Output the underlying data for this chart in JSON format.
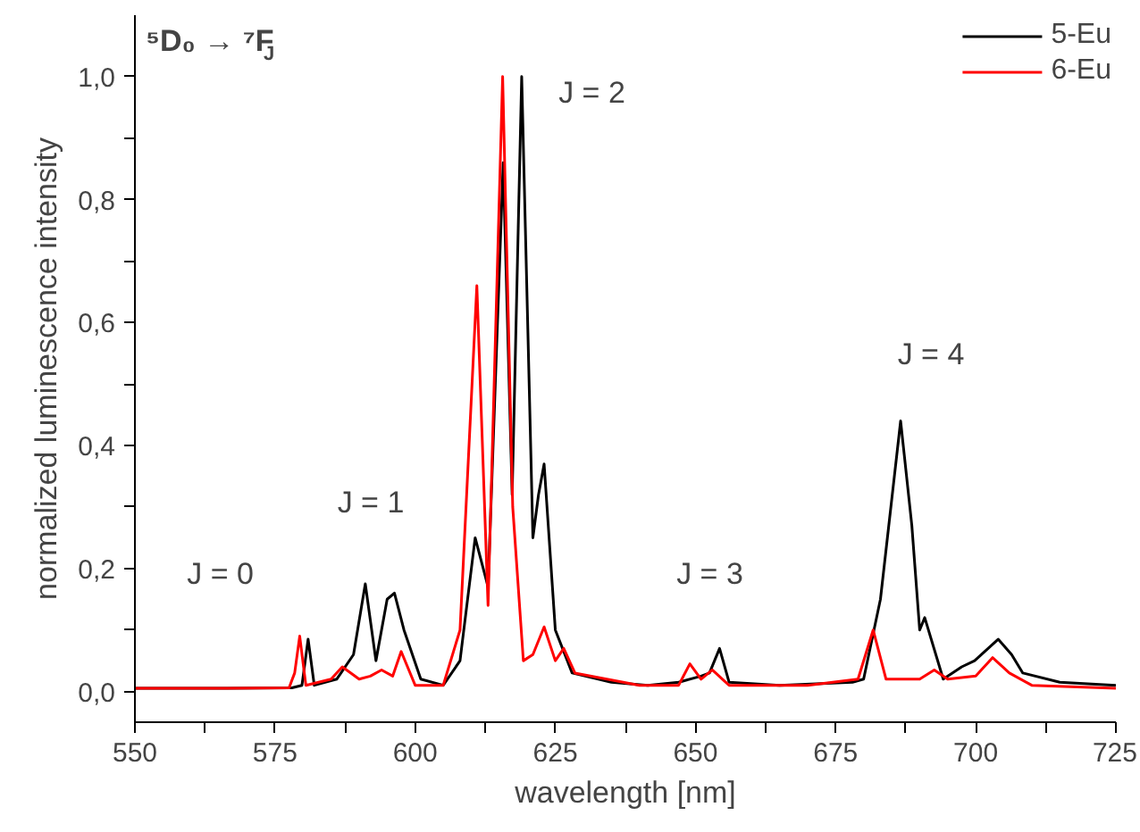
{
  "chart_data": {
    "type": "line",
    "title": "⁵D₀ → ⁷F$_{J}$",
    "xlabel": "wavelength [nm]",
    "ylabel": "normalized luminescence intensity",
    "xlim": [
      550,
      725
    ],
    "ylim": [
      -0.05,
      1.1
    ],
    "xticks": [
      550,
      {
        "value": 562.5,
        "label": null
      },
      575,
      {
        "value": 587.5,
        "label": null
      },
      600,
      {
        "value": 612.5,
        "label": null
      },
      625,
      {
        "value": 637.5,
        "label": null
      },
      650,
      {
        "value": 662.5,
        "label": null
      },
      675,
      {
        "value": 687.5,
        "label": null
      },
      700,
      {
        "value": 712.5,
        "label": null
      },
      725
    ],
    "yticks": [
      {
        "value": 0,
        "label": "0,0"
      },
      {
        "value": 0.1,
        "label": null
      },
      {
        "value": 0.2,
        "label": "0,2"
      },
      {
        "value": 0.3,
        "label": null
      },
      {
        "value": 0.4,
        "label": "0,4"
      },
      {
        "value": 0.5,
        "label": null
      },
      {
        "value": 0.6,
        "label": "0,6"
      },
      {
        "value": 0.7,
        "label": null
      },
      {
        "value": 0.8,
        "label": "0,8"
      },
      {
        "value": 0.9,
        "label": null
      },
      {
        "value": 1.0,
        "label": "1,0"
      }
    ],
    "grid": false,
    "legend": "top right",
    "line_style": "solid",
    "marker": "none",
    "series": [
      {
        "name": "5-Eu",
        "color": "#000000",
        "x": [
          550,
          565,
          578,
          579.8,
          580.9,
          582,
          586,
          589,
          591.1,
          593,
          595,
          596.3,
          598,
          601,
          605,
          608,
          610.7,
          613,
          615.7,
          617.3,
          619,
          621,
          622,
          623,
          625,
          628,
          635,
          641.5,
          647,
          651,
          652.5,
          654.3,
          656,
          665,
          678,
          680,
          683,
          686.6,
          688.6,
          690,
          690.9,
          694.2,
          697.5,
          699.8,
          704,
          706.4,
          708.4,
          715,
          725
        ],
        "values": [
          0.005,
          0.005,
          0.006,
          0.01,
          0.085,
          0.01,
          0.02,
          0.06,
          0.175,
          0.05,
          0.15,
          0.16,
          0.1,
          0.02,
          0.01,
          0.05,
          0.25,
          0.17,
          0.86,
          0.32,
          1.0,
          0.25,
          0.32,
          0.37,
          0.1,
          0.03,
          0.015,
          0.01,
          0.015,
          0.025,
          0.03,
          0.07,
          0.015,
          0.01,
          0.015,
          0.02,
          0.15,
          0.44,
          0.27,
          0.1,
          0.12,
          0.02,
          0.04,
          0.05,
          0.085,
          0.06,
          0.03,
          0.015,
          0.01
        ]
      },
      {
        "name": "6-Eu",
        "color": "#ff0000",
        "x": [
          550,
          565,
          577.5,
          578.5,
          579.4,
          580.5,
          585,
          587,
          590,
          592,
          594,
          596,
          597.5,
          600,
          605,
          608,
          611,
          613,
          615.6,
          617.4,
          619.3,
          621,
          623,
          625,
          626.5,
          628.5,
          640,
          647,
          649,
          651,
          653,
          656,
          670,
          679,
          681.7,
          684,
          690,
          692.6,
          695,
          700,
          703,
          706,
          710,
          725
        ],
        "values": [
          0.005,
          0.005,
          0.006,
          0.03,
          0.09,
          0.01,
          0.02,
          0.04,
          0.02,
          0.025,
          0.035,
          0.025,
          0.065,
          0.01,
          0.01,
          0.1,
          0.66,
          0.14,
          1.0,
          0.3,
          0.05,
          0.06,
          0.105,
          0.05,
          0.07,
          0.03,
          0.01,
          0.01,
          0.045,
          0.02,
          0.035,
          0.01,
          0.01,
          0.02,
          0.1,
          0.02,
          0.02,
          0.035,
          0.02,
          0.025,
          0.055,
          0.03,
          0.01,
          0.005
        ]
      }
    ],
    "annotations": [
      "J = 0",
      "J = 1",
      "J = 2",
      "J = 3",
      "J = 4"
    ]
  }
}
